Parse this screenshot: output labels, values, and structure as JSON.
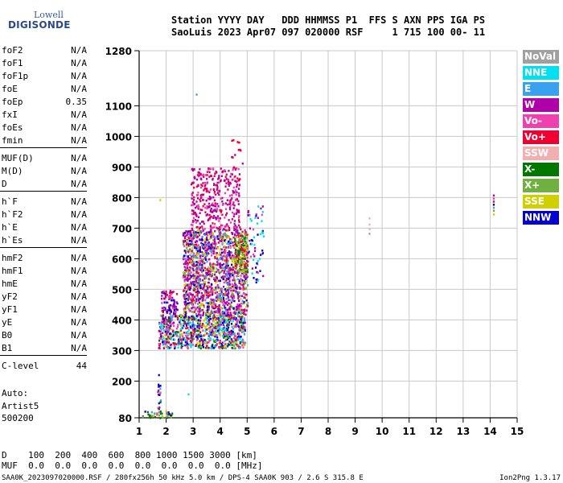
{
  "logo": {
    "line1": "Lowell",
    "line2": "DIGISONDE"
  },
  "header": {
    "line1": "Station YYYY DAY   DDD HHMMSS P1  FFS S AXN PPS IGA PS",
    "line2": "SaoLuis 2023 Apr07 097 020000 RSF     1 715 100 00- 11"
  },
  "params": [
    {
      "name": "foF2",
      "value": "N/A"
    },
    {
      "name": "foF1",
      "value": "N/A"
    },
    {
      "name": "foF1p",
      "value": "N/A"
    },
    {
      "name": "foE",
      "value": "N/A"
    },
    {
      "name": "foEp",
      "value": "0.35"
    },
    {
      "name": "fxI",
      "value": "N/A"
    },
    {
      "name": "foEs",
      "value": "N/A"
    },
    {
      "name": "fmin",
      "value": "N/A"
    },
    {
      "name": "MUF(D)",
      "value": "N/A"
    },
    {
      "name": "M(D)",
      "value": "N/A"
    },
    {
      "name": "D",
      "value": "N/A"
    },
    {
      "name": "h`F",
      "value": "N/A"
    },
    {
      "name": "h`F2",
      "value": "N/A"
    },
    {
      "name": "h`E",
      "value": "N/A"
    },
    {
      "name": "h`Es",
      "value": "N/A"
    },
    {
      "name": "hmF2",
      "value": "N/A"
    },
    {
      "name": "hmF1",
      "value": "N/A"
    },
    {
      "name": "hmE",
      "value": "N/A"
    },
    {
      "name": "yF2",
      "value": "N/A"
    },
    {
      "name": "yF1",
      "value": "N/A"
    },
    {
      "name": "yE",
      "value": "N/A"
    },
    {
      "name": "B0",
      "value": "N/A"
    },
    {
      "name": "B1",
      "value": "N/A"
    },
    {
      "name": "C-level",
      "value": "44"
    }
  ],
  "auto": {
    "line1": "Auto:",
    "line2": "Artist5",
    "line3": "500200"
  },
  "legend": [
    {
      "label": "NoVal",
      "color": "#a0a0a0"
    },
    {
      "label": "NNE",
      "color": "#00e0f0"
    },
    {
      "label": "E",
      "color": "#3aa0f0"
    },
    {
      "label": "W",
      "color": "#b000a8"
    },
    {
      "label": "Vo-",
      "color": "#f040b0"
    },
    {
      "label": "Vo+",
      "color": "#f00030"
    },
    {
      "label": "SSW",
      "color": "#f0b0b0"
    },
    {
      "label": "X-",
      "color": "#007800"
    },
    {
      "label": "X+",
      "color": "#70b040"
    },
    {
      "label": "SSE",
      "color": "#d0d000"
    },
    {
      "label": "NNW",
      "color": "#0000d0"
    }
  ],
  "footer": {
    "d_row": "D    100  200  400  600  800 1000 1500 3000 [km]",
    "muf_row": "MUF  0.0  0.0  0.0  0.0  0.0  0.0  0.0  0.0 [MHz]",
    "bottom": "SAA0K_2023097020000.RSF / 280fx256h 50 kHz 5.0 km / DPS-4 SAA0K 903 / 2.6 S 315.8 E",
    "version": "Ion2Png 1.3.17"
  },
  "chart_data": {
    "type": "scatter",
    "title": "",
    "xlabel": "",
    "ylabel": "",
    "xlim": [
      1,
      15
    ],
    "ylim": [
      80,
      1280
    ],
    "x_ticks": [
      1,
      2,
      3,
      4,
      5,
      6,
      7,
      8,
      9,
      10,
      11,
      12,
      13,
      14,
      15
    ],
    "y_ticks": [
      80,
      200,
      300,
      400,
      500,
      600,
      700,
      800,
      900,
      1000,
      1100,
      1280
    ],
    "grid": true,
    "legend_position": "right",
    "clusters": [
      {
        "name": "low-trace",
        "x": [
          1.1,
          2.2
        ],
        "y": [
          80,
          105
        ],
        "density": 45,
        "colors": [
          "#0000d0",
          "#3aa0f0",
          "#d0d000",
          "#70b040",
          "#007800",
          "#f040b0"
        ]
      },
      {
        "name": "spike-1.7",
        "x": [
          1.65,
          1.8
        ],
        "y": [
          100,
          225
        ],
        "density": 22,
        "colors": [
          "#007800",
          "#0000d0",
          "#3aa0f0",
          "#70b040",
          "#b000a8"
        ]
      },
      {
        "name": "lower-band",
        "x": [
          1.7,
          4.9
        ],
        "y": [
          310,
          420
        ],
        "density": 900,
        "colors": [
          "#0000d0",
          "#f00030",
          "#b000a8",
          "#f040b0",
          "#d0d000",
          "#007800",
          "#3aa0f0",
          "#00e0f0"
        ]
      },
      {
        "name": "left-blob",
        "x": [
          1.8,
          2.4
        ],
        "y": [
          420,
          500
        ],
        "density": 90,
        "colors": [
          "#b000a8",
          "#f040b0",
          "#f00030",
          "#0000d0"
        ]
      },
      {
        "name": "main-body",
        "x": [
          2.6,
          5.0
        ],
        "y": [
          420,
          700
        ],
        "density": 1500,
        "colors": [
          "#b000a8",
          "#b000a8",
          "#b000a8",
          "#f040b0",
          "#f00030",
          "#0000d0",
          "#70b040",
          "#d0d000",
          "#3aa0f0"
        ]
      },
      {
        "name": "upper-plume",
        "x": [
          2.9,
          4.7
        ],
        "y": [
          700,
          900
        ],
        "density": 380,
        "colors": [
          "#b000a8",
          "#b000a8",
          "#f040b0",
          "#f00030"
        ]
      },
      {
        "name": "yellow-core",
        "x": [
          4.5,
          5.0
        ],
        "y": [
          560,
          680
        ],
        "density": 140,
        "colors": [
          "#d0d000",
          "#70b040",
          "#007800",
          "#f00030"
        ]
      },
      {
        "name": "right-tail",
        "x": [
          5.0,
          5.6
        ],
        "y": [
          520,
          780
        ],
        "density": 60,
        "colors": [
          "#b000a8",
          "#f040b0",
          "#00e0f0",
          "#0000d0"
        ]
      },
      {
        "name": "sparse-top",
        "x": [
          4.4,
          4.9
        ],
        "y": [
          900,
          1000
        ],
        "density": 12,
        "colors": [
          "#b000a8",
          "#f00030"
        ]
      }
    ],
    "points": [
      {
        "x": 3.1,
        "y": 1140,
        "color": "#3aa0f0"
      },
      {
        "x": 1.75,
        "y": 795,
        "color": "#d0d000"
      },
      {
        "x": 9.5,
        "y": 735,
        "color": "#f0b0b0"
      },
      {
        "x": 9.5,
        "y": 715,
        "color": "#f0b0b0"
      },
      {
        "x": 9.5,
        "y": 700,
        "color": "#f0b0b0"
      },
      {
        "x": 9.5,
        "y": 685,
        "color": "#a0a0a0"
      },
      {
        "x": 14.1,
        "y": 810,
        "color": "#b000a8"
      },
      {
        "x": 14.1,
        "y": 800,
        "color": "#f040b0"
      },
      {
        "x": 14.1,
        "y": 790,
        "color": "#f00030"
      },
      {
        "x": 14.1,
        "y": 780,
        "color": "#0000d0"
      },
      {
        "x": 14.1,
        "y": 770,
        "color": "#3aa0f0"
      },
      {
        "x": 14.1,
        "y": 760,
        "color": "#70b040"
      },
      {
        "x": 14.1,
        "y": 748,
        "color": "#d0d000"
      },
      {
        "x": 2.8,
        "y": 160,
        "color": "#00e0f0"
      }
    ]
  }
}
